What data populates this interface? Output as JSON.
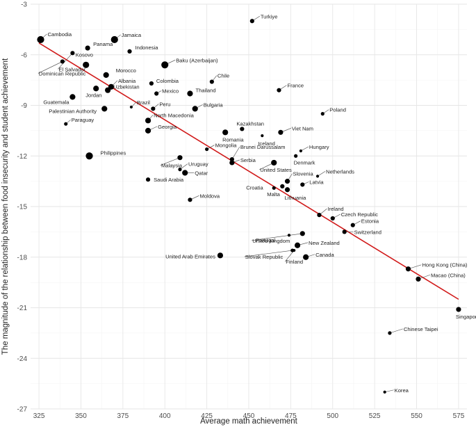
{
  "chart_data": {
    "type": "scatter",
    "title": "",
    "xlabel": "Average math achievement",
    "ylabel": "The magnitude of the relationship between food insecurity and student achievement",
    "xlim": [
      320,
      580
    ],
    "ylim": [
      -27,
      -3
    ],
    "xticks": [
      325,
      350,
      375,
      400,
      425,
      450,
      475,
      500,
      525,
      550,
      575
    ],
    "yticks": [
      -3,
      -6,
      -9,
      -12,
      -15,
      -18,
      -21,
      -24,
      -27
    ],
    "grid": true,
    "trend_line": {
      "x": [
        325,
        575
      ],
      "y": [
        -5.3,
        -20.5
      ]
    },
    "points": [
      {
        "label": "Cambodia",
        "x": 326,
        "y": -5.1,
        "size": 9
      },
      {
        "label": "Jamaica",
        "x": 370,
        "y": -5.1,
        "size": 9
      },
      {
        "label": "Turkiye",
        "x": 452,
        "y": -4.0,
        "size": 5
      },
      {
        "label": "Panama",
        "x": 354,
        "y": -5.6,
        "size": 6
      },
      {
        "label": "Indonesia",
        "x": 379,
        "y": -5.8,
        "size": 5
      },
      {
        "label": "El Salvador",
        "x": 345,
        "y": -5.9,
        "size": 5
      },
      {
        "label": "Kosovo",
        "x": 353,
        "y": -6.6,
        "size": 8
      },
      {
        "label": "Baku (Azerbaijan)",
        "x": 400,
        "y": -6.6,
        "size": 9
      },
      {
        "label": "Dominican Republic",
        "x": 339,
        "y": -6.4,
        "size": 5
      },
      {
        "label": "Morocco",
        "x": 365,
        "y": -7.2,
        "size": 7
      },
      {
        "label": "Albania",
        "x": 368,
        "y": -7.9,
        "size": 7
      },
      {
        "label": "Uzbekistan",
        "x": 366,
        "y": -8.1,
        "size": 7
      },
      {
        "label": "Jordan",
        "x": 359,
        "y": -8.0,
        "size": 7
      },
      {
        "label": "Colombia",
        "x": 392,
        "y": -7.7,
        "size": 5
      },
      {
        "label": "Mexico",
        "x": 395,
        "y": -8.3,
        "size": 5
      },
      {
        "label": "Chile",
        "x": 428,
        "y": -7.6,
        "size": 5
      },
      {
        "label": "Thailand",
        "x": 415,
        "y": -8.3,
        "size": 7
      },
      {
        "label": "France",
        "x": 468,
        "y": -8.1,
        "size": 5
      },
      {
        "label": "Guatemala",
        "x": 345,
        "y": -8.5,
        "size": 7
      },
      {
        "label": "Brazil",
        "x": 380,
        "y": -9.1,
        "size": 3
      },
      {
        "label": "Peru",
        "x": 393,
        "y": -9.2,
        "size": 5
      },
      {
        "label": "Bulgaria",
        "x": 418,
        "y": -9.2,
        "size": 7
      },
      {
        "label": "Palestinian Authority",
        "x": 364,
        "y": -9.2,
        "size": 7
      },
      {
        "label": "Poland",
        "x": 494,
        "y": -9.5,
        "size": 4
      },
      {
        "label": "North Macedonia",
        "x": 390,
        "y": -9.9,
        "size": 7
      },
      {
        "label": "Paraguay",
        "x": 341,
        "y": -10.1,
        "size": 4
      },
      {
        "label": "Georgia",
        "x": 390,
        "y": -10.5,
        "size": 7
      },
      {
        "label": "Kazakhstan",
        "x": 446,
        "y": -10.4,
        "size": 5
      },
      {
        "label": "Romania",
        "x": 436,
        "y": -10.6,
        "size": 7
      },
      {
        "label": "Viet Nam",
        "x": 469,
        "y": -10.6,
        "size": 6
      },
      {
        "label": "Iceland",
        "x": 458,
        "y": -10.8,
        "size": 3
      },
      {
        "label": "Philippines",
        "x": 355,
        "y": -12.0,
        "size": 9
      },
      {
        "label": "Mongolia",
        "x": 425,
        "y": -11.6,
        "size": 4
      },
      {
        "label": "Brunei Darussalam",
        "x": 440,
        "y": -12.2,
        "size": 5
      },
      {
        "label": "Hungary",
        "x": 481,
        "y": -11.7,
        "size": 3
      },
      {
        "label": "Denmark",
        "x": 478,
        "y": -12.0,
        "size": 4
      },
      {
        "label": "Malaysia",
        "x": 409,
        "y": -12.1,
        "size": 6
      },
      {
        "label": "Uruguay",
        "x": 409,
        "y": -12.8,
        "size": 4
      },
      {
        "label": "Serbia",
        "x": 440,
        "y": -12.4,
        "size": 6
      },
      {
        "label": "Qatar",
        "x": 412,
        "y": -13.0,
        "size": 7
      },
      {
        "label": "United States",
        "x": 465,
        "y": -12.4,
        "size": 7
      },
      {
        "label": "Saudi Arabia",
        "x": 390,
        "y": -13.4,
        "size": 5
      },
      {
        "label": "Slovenia",
        "x": 473,
        "y": -13.5,
        "size": 6
      },
      {
        "label": "Netherlands",
        "x": 491,
        "y": -13.2,
        "size": 3
      },
      {
        "label": "Croatia",
        "x": 465,
        "y": -13.9,
        "size": 4
      },
      {
        "label": "Latvia",
        "x": 482,
        "y": -13.7,
        "size": 5
      },
      {
        "label": "Malta",
        "x": 470,
        "y": -13.8,
        "size": 5
      },
      {
        "label": "Lithuania",
        "x": 473,
        "y": -14.0,
        "size": 6
      },
      {
        "label": "Moldova",
        "x": 415,
        "y": -14.6,
        "size": 5
      },
      {
        "label": "Ireland",
        "x": 492,
        "y": -15.5,
        "size": 5
      },
      {
        "label": "Czech Republic",
        "x": 500,
        "y": -15.7,
        "size": 5
      },
      {
        "label": "Estonia",
        "x": 512,
        "y": -16.1,
        "size": 5
      },
      {
        "label": "Switzerland",
        "x": 507,
        "y": -16.5,
        "size": 5
      },
      {
        "label": "Portugal",
        "x": 474,
        "y": -16.7,
        "size": 3
      },
      {
        "label": "United Kingdom",
        "x": 482,
        "y": -16.6,
        "size": 6
      },
      {
        "label": "New Zealand",
        "x": 479,
        "y": -17.3,
        "size": 7
      },
      {
        "label": "Slovak Republic",
        "x": 476,
        "y": -17.6,
        "size": 4
      },
      {
        "label": "Finland",
        "x": 477,
        "y": -17.6,
        "size": 3
      },
      {
        "label": "Canada",
        "x": 484,
        "y": -18.0,
        "size": 7
      },
      {
        "label": "United Arab Emirates",
        "x": 433,
        "y": -17.9,
        "size": 7
      },
      {
        "label": "Hong Kong (China)",
        "x": 545,
        "y": -18.7,
        "size": 6
      },
      {
        "label": "Macao (China)",
        "x": 551,
        "y": -19.3,
        "size": 6
      },
      {
        "label": "Singapore",
        "x": 575,
        "y": -21.1,
        "size": 6
      },
      {
        "label": "Chinese Taipei",
        "x": 534,
        "y": -22.5,
        "size": 4
      },
      {
        "label": "Korea",
        "x": 531,
        "y": -26.0,
        "size": 3
      }
    ]
  }
}
